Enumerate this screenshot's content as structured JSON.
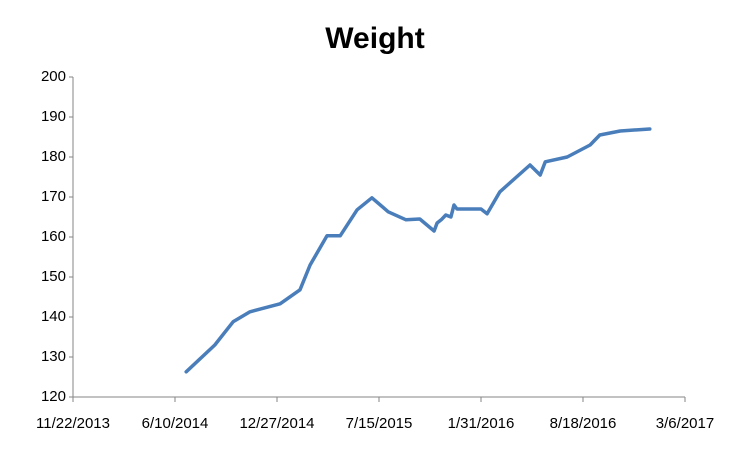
{
  "chart_data": {
    "type": "line",
    "title": "Weight",
    "x": [
      "7/2/2014",
      "8/27/2014",
      "10/2/2014",
      "11/4/2014",
      "1/2/2015",
      "2/10/2015",
      "3/2/2015",
      "4/4/2015",
      "4/30/2015",
      "6/2/2015",
      "7/1/2015",
      "8/2/2015",
      "9/6/2015",
      "10/3/2015",
      "10/31/2015",
      "11/6/2015",
      "11/14/2015",
      "11/23/2015",
      "12/3/2015",
      "12/9/2015",
      "12/15/2015",
      "1/19/2016",
      "1/31/2016",
      "2/12/2016",
      "3/8/2016",
      "5/6/2016",
      "5/26/2016",
      "6/5/2016",
      "7/18/2016",
      "9/1/2016",
      "9/20/2016",
      "10/30/2016",
      "12/27/2016"
    ],
    "values": [
      126.3,
      133,
      138.8,
      141.3,
      143.3,
      146.8,
      153,
      160.3,
      160.3,
      166.8,
      169.8,
      166.3,
      164.3,
      164.5,
      161.5,
      163.5,
      164.3,
      165.5,
      165,
      168,
      167,
      167,
      167,
      165.8,
      171.3,
      178,
      175.5,
      178.8,
      180,
      183,
      185.5,
      186.5,
      187
    ],
    "color": "#4a7ebb",
    "xlim": [
      "11/22/2013",
      "3/6/2017"
    ],
    "xticks": [
      "11/22/2013",
      "6/10/2014",
      "12/27/2014",
      "7/15/2015",
      "1/31/2016",
      "8/18/2016",
      "3/6/2017"
    ],
    "ylim": [
      120,
      200
    ],
    "yticks": [
      120,
      130,
      140,
      150,
      160,
      170,
      180,
      190,
      200
    ]
  }
}
